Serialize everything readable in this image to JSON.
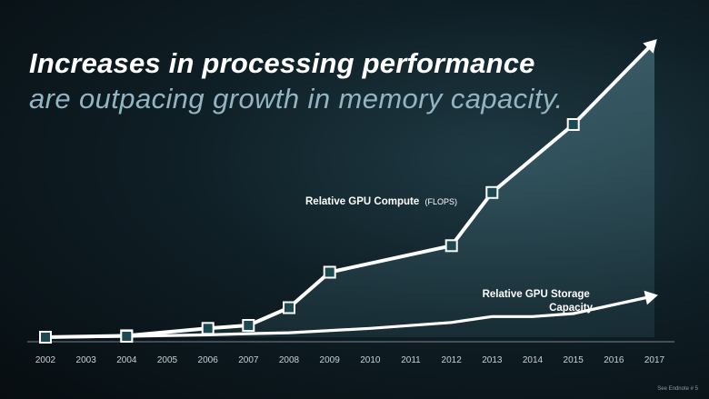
{
  "slide": {
    "title_line1": "Increases in processing performance",
    "title_line2": "are outpacing growth in memory capacity.",
    "footnote": "See Endnote # 5"
  },
  "colors": {
    "line": "#ffffff",
    "marker_fill": "#1d4a52",
    "area_fill": "#3f6b78",
    "title_secondary": "#93b4c2"
  },
  "chart_data": {
    "type": "line",
    "categories": [
      "2002",
      "2003",
      "2004",
      "2005",
      "2006",
      "2007",
      "2008",
      "2009",
      "2010",
      "2011",
      "2012",
      "2013",
      "2014",
      "2015",
      "2016",
      "2017"
    ],
    "xlabel": "",
    "ylabel": "",
    "ylim": [
      0,
      100
    ],
    "grid": false,
    "series": [
      {
        "name": "Relative GPU Compute",
        "name_suffix": "(FLOPS)",
        "x": [
          "2002",
          "2004",
          "2006",
          "2007",
          "2008",
          "2009",
          "2012",
          "2013",
          "2015",
          "2017"
        ],
        "values": [
          0,
          0.5,
          3,
          4,
          10,
          22,
          31,
          49,
          72,
          100
        ],
        "markers": [
          true,
          true,
          true,
          true,
          true,
          true,
          true,
          true,
          true,
          false
        ],
        "arrow_end": true,
        "filled": true
      },
      {
        "name": "Relative GPU Storage Capacity",
        "x": [
          "2002",
          "2004",
          "2006",
          "2007",
          "2008",
          "2010",
          "2012",
          "2013",
          "2014",
          "2015",
          "2017"
        ],
        "values": [
          0,
          0.3,
          0.8,
          1.2,
          1.5,
          3,
          5,
          7,
          7,
          8,
          14
        ],
        "markers": [
          false,
          true,
          false,
          false,
          false,
          false,
          false,
          false,
          false,
          false,
          false
        ],
        "arrow_end": true,
        "filled": false
      }
    ]
  }
}
